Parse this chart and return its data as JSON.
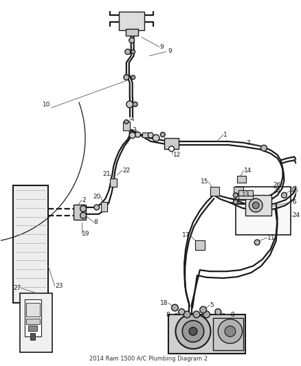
{
  "bg_color": "#ffffff",
  "line_color": "#1a1a1a",
  "title": "2014 Ram 1500 A/C Plumbing Diagram 2",
  "lw_pipe": 1.6,
  "lw_thin": 0.9,
  "lw_leader": 0.6
}
